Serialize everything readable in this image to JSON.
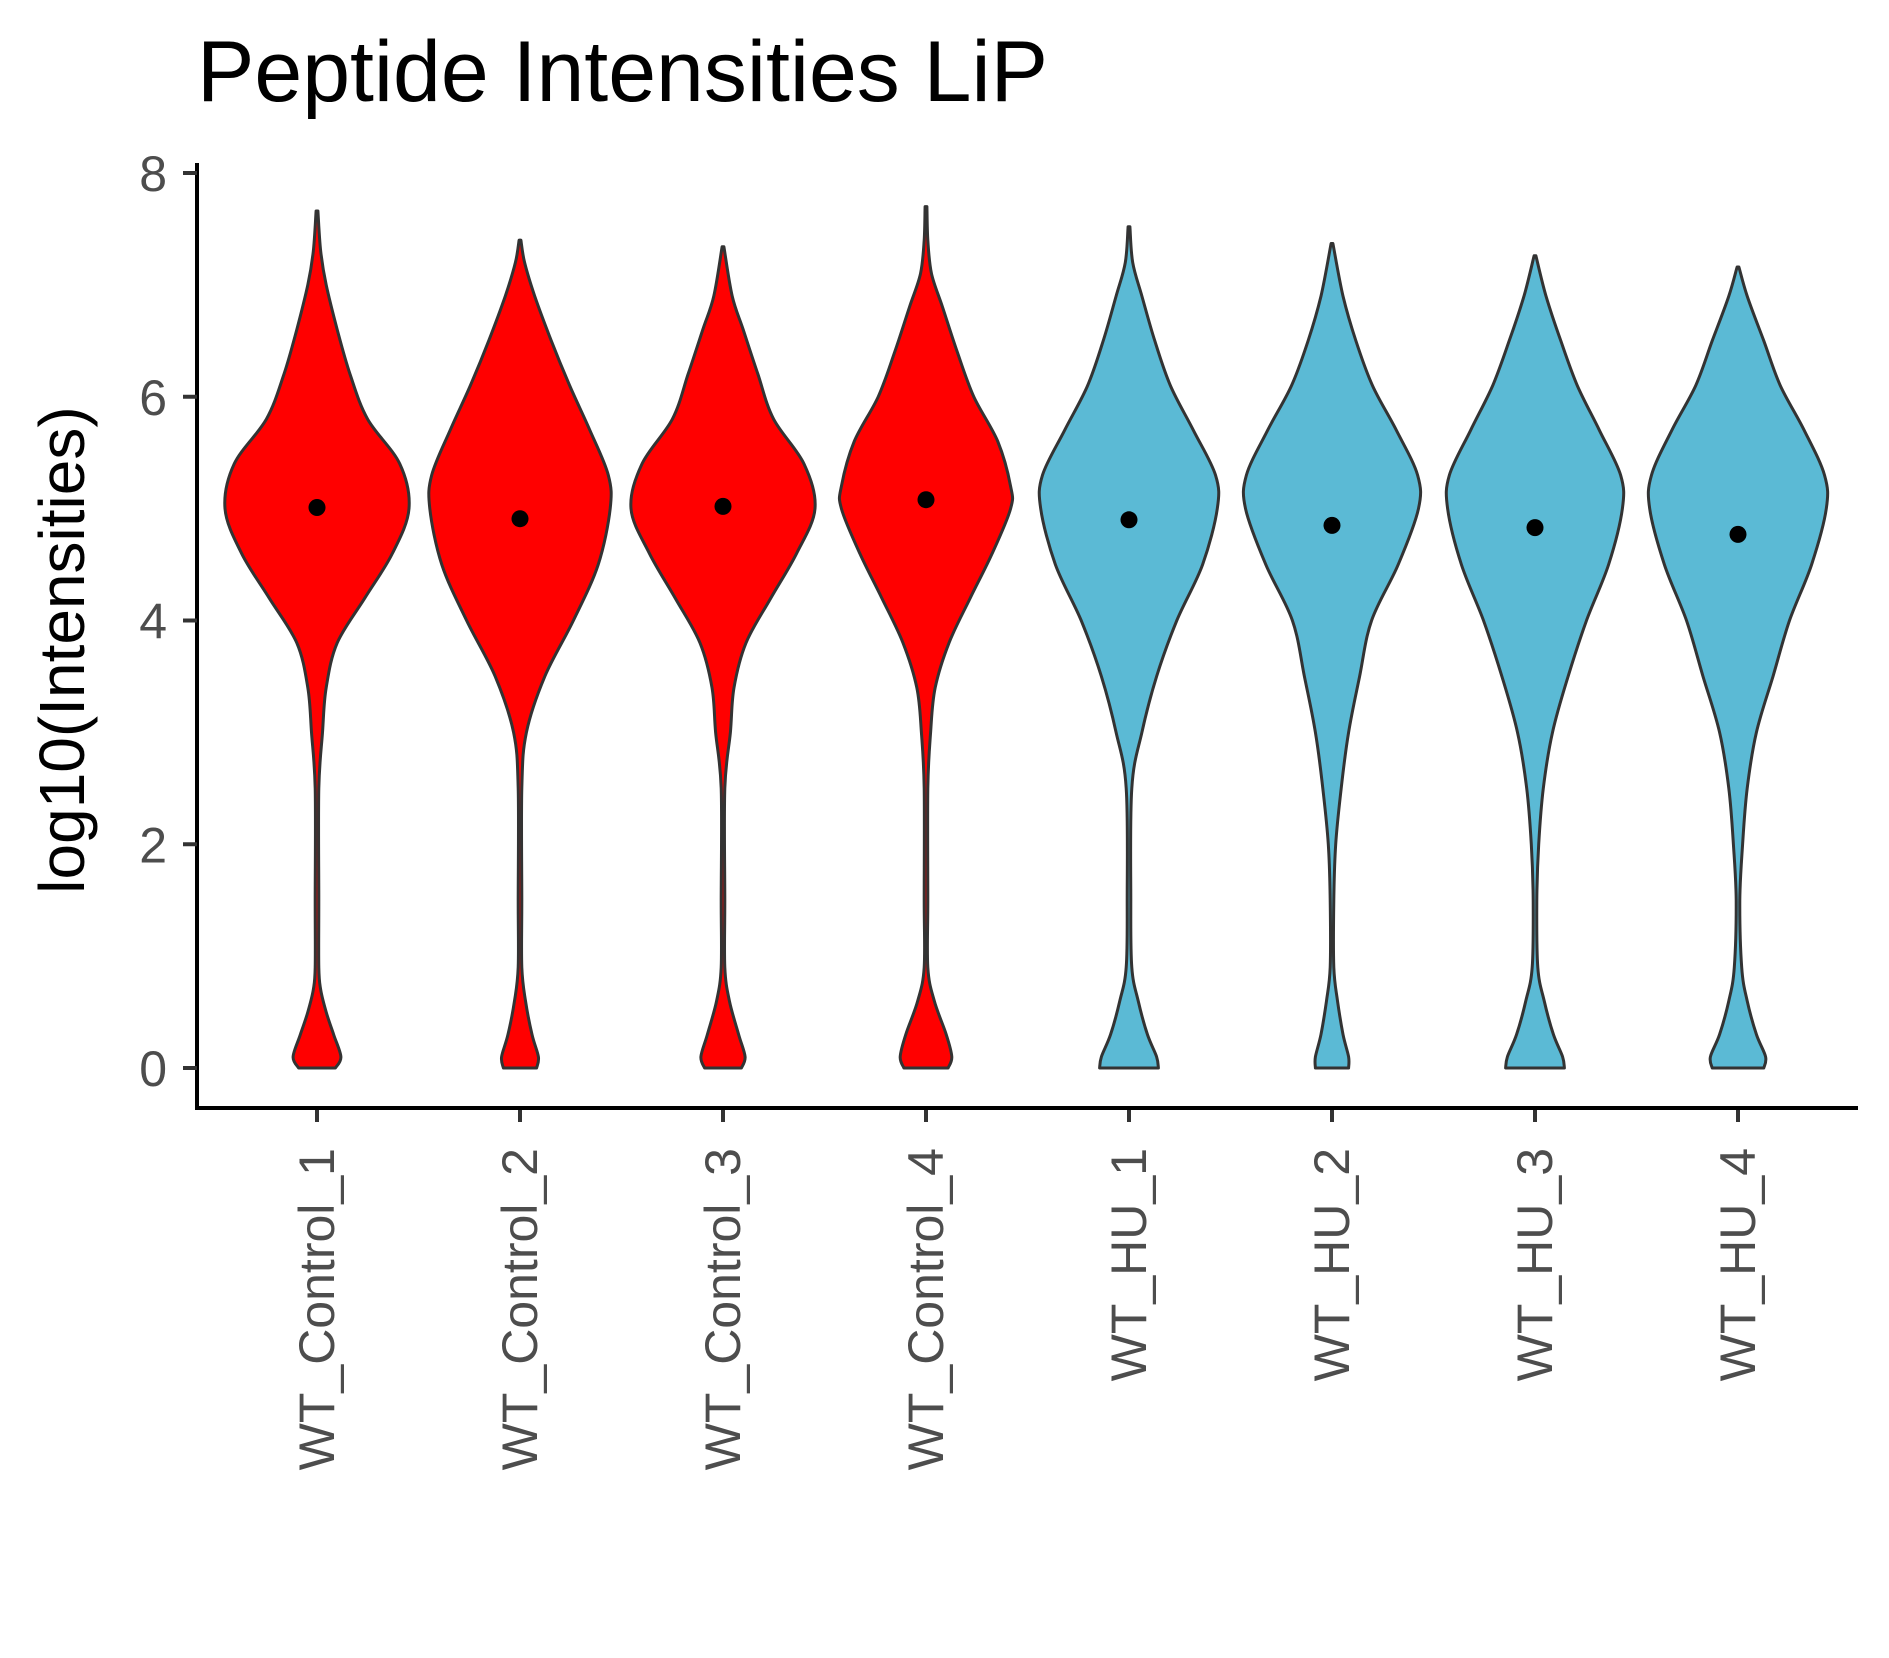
{
  "chart_data": {
    "type": "violin",
    "title": "Peptide Intensities LiP",
    "xlabel": "",
    "ylabel": "log10(Intensities)",
    "ylim": [
      -0.35,
      8.05
    ],
    "yticks": [
      0,
      2,
      4,
      6,
      8
    ],
    "grid": false,
    "legend": "none",
    "categories": [
      "WT_Control_1",
      "WT_Control_2",
      "WT_Control_3",
      "WT_Control_4",
      "WT_HU_1",
      "WT_HU_2",
      "WT_HU_3",
      "WT_HU_4"
    ],
    "groups": [
      "Control",
      "Control",
      "Control",
      "Control",
      "HU",
      "HU",
      "HU",
      "HU"
    ],
    "group_colors": {
      "Control": "#ff0000",
      "HU": "#5bbad5"
    },
    "outline_color": "#333333",
    "point_color": "#000000",
    "means": [
      5.01,
      4.91,
      5.02,
      5.08,
      4.9,
      4.85,
      4.83,
      4.77
    ],
    "max_values": [
      7.66,
      7.4,
      7.34,
      7.7,
      7.52,
      7.37,
      7.26,
      7.16
    ],
    "min_values": [
      0,
      0,
      0,
      0,
      0,
      0,
      0,
      0
    ],
    "violin_profiles": [
      [
        [
          0,
          0.2
        ],
        [
          0.1,
          0.26
        ],
        [
          0.3,
          0.18
        ],
        [
          0.5,
          0.1
        ],
        [
          0.7,
          0.04
        ],
        [
          0.9,
          0.02
        ],
        [
          1.5,
          0.02
        ],
        [
          2.5,
          0.02
        ],
        [
          3.0,
          0.06
        ],
        [
          3.4,
          0.1
        ],
        [
          3.8,
          0.22
        ],
        [
          4.2,
          0.52
        ],
        [
          4.6,
          0.82
        ],
        [
          5.0,
          1.0
        ],
        [
          5.4,
          0.9
        ],
        [
          5.8,
          0.55
        ],
        [
          6.2,
          0.36
        ],
        [
          6.6,
          0.22
        ],
        [
          7.0,
          0.1
        ],
        [
          7.3,
          0.04
        ],
        [
          7.66,
          0.01
        ]
      ],
      [
        [
          0,
          0.18
        ],
        [
          0.1,
          0.2
        ],
        [
          0.3,
          0.13
        ],
        [
          0.6,
          0.06
        ],
        [
          0.9,
          0.02
        ],
        [
          1.5,
          0.02
        ],
        [
          2.5,
          0.02
        ],
        [
          3.0,
          0.07
        ],
        [
          3.5,
          0.27
        ],
        [
          4.0,
          0.58
        ],
        [
          4.5,
          0.85
        ],
        [
          5.0,
          0.98
        ],
        [
          5.3,
          0.96
        ],
        [
          5.7,
          0.76
        ],
        [
          6.1,
          0.54
        ],
        [
          6.5,
          0.34
        ],
        [
          6.9,
          0.16
        ],
        [
          7.2,
          0.05
        ],
        [
          7.4,
          0.01
        ]
      ],
      [
        [
          0,
          0.2
        ],
        [
          0.1,
          0.24
        ],
        [
          0.3,
          0.17
        ],
        [
          0.6,
          0.07
        ],
        [
          0.9,
          0.02
        ],
        [
          1.5,
          0.02
        ],
        [
          2.5,
          0.02
        ],
        [
          3.0,
          0.08
        ],
        [
          3.4,
          0.12
        ],
        [
          3.8,
          0.25
        ],
        [
          4.2,
          0.52
        ],
        [
          4.6,
          0.8
        ],
        [
          5.0,
          1.0
        ],
        [
          5.4,
          0.88
        ],
        [
          5.8,
          0.55
        ],
        [
          6.2,
          0.38
        ],
        [
          6.6,
          0.22
        ],
        [
          6.9,
          0.1
        ],
        [
          7.34,
          0.01
        ]
      ],
      [
        [
          0,
          0.24
        ],
        [
          0.1,
          0.28
        ],
        [
          0.3,
          0.22
        ],
        [
          0.6,
          0.09
        ],
        [
          0.9,
          0.02
        ],
        [
          1.5,
          0.02
        ],
        [
          2.5,
          0.02
        ],
        [
          3.0,
          0.05
        ],
        [
          3.4,
          0.1
        ],
        [
          3.8,
          0.25
        ],
        [
          4.2,
          0.48
        ],
        [
          4.6,
          0.72
        ],
        [
          5.0,
          0.92
        ],
        [
          5.2,
          0.92
        ],
        [
          5.6,
          0.78
        ],
        [
          6.0,
          0.52
        ],
        [
          6.4,
          0.34
        ],
        [
          6.8,
          0.18
        ],
        [
          7.1,
          0.06
        ],
        [
          7.4,
          0.02
        ],
        [
          7.7,
          0.01
        ]
      ],
      [
        [
          0,
          0.32
        ],
        [
          0.1,
          0.3
        ],
        [
          0.3,
          0.2
        ],
        [
          0.6,
          0.1
        ],
        [
          0.9,
          0.03
        ],
        [
          1.5,
          0.02
        ],
        [
          2.5,
          0.03
        ],
        [
          3.0,
          0.14
        ],
        [
          3.5,
          0.3
        ],
        [
          4.0,
          0.52
        ],
        [
          4.5,
          0.8
        ],
        [
          5.0,
          0.96
        ],
        [
          5.3,
          0.94
        ],
        [
          5.7,
          0.7
        ],
        [
          6.1,
          0.45
        ],
        [
          6.5,
          0.28
        ],
        [
          6.9,
          0.14
        ],
        [
          7.2,
          0.04
        ],
        [
          7.52,
          0.01
        ]
      ],
      [
        [
          0,
          0.18
        ],
        [
          0.1,
          0.18
        ],
        [
          0.3,
          0.12
        ],
        [
          0.6,
          0.06
        ],
        [
          0.9,
          0.02
        ],
        [
          1.5,
          0.02
        ],
        [
          2.0,
          0.04
        ],
        [
          2.5,
          0.1
        ],
        [
          3.0,
          0.18
        ],
        [
          3.5,
          0.3
        ],
        [
          4.0,
          0.43
        ],
        [
          4.5,
          0.72
        ],
        [
          5.0,
          0.94
        ],
        [
          5.3,
          0.93
        ],
        [
          5.7,
          0.7
        ],
        [
          6.1,
          0.44
        ],
        [
          6.5,
          0.26
        ],
        [
          6.9,
          0.12
        ],
        [
          7.37,
          0.01
        ]
      ],
      [
        [
          0,
          0.32
        ],
        [
          0.1,
          0.3
        ],
        [
          0.3,
          0.2
        ],
        [
          0.6,
          0.1
        ],
        [
          0.9,
          0.03
        ],
        [
          1.5,
          0.02
        ],
        [
          2.0,
          0.04
        ],
        [
          2.5,
          0.09
        ],
        [
          3.0,
          0.19
        ],
        [
          3.5,
          0.36
        ],
        [
          4.0,
          0.56
        ],
        [
          4.5,
          0.8
        ],
        [
          5.0,
          0.95
        ],
        [
          5.3,
          0.93
        ],
        [
          5.7,
          0.7
        ],
        [
          6.1,
          0.46
        ],
        [
          6.5,
          0.28
        ],
        [
          6.9,
          0.12
        ],
        [
          7.26,
          0.01
        ]
      ],
      [
        [
          0,
          0.28
        ],
        [
          0.1,
          0.3
        ],
        [
          0.3,
          0.2
        ],
        [
          0.6,
          0.1
        ],
        [
          0.9,
          0.04
        ],
        [
          1.5,
          0.02
        ],
        [
          2.0,
          0.05
        ],
        [
          2.5,
          0.1
        ],
        [
          3.0,
          0.2
        ],
        [
          3.5,
          0.38
        ],
        [
          4.0,
          0.56
        ],
        [
          4.5,
          0.8
        ],
        [
          5.0,
          0.96
        ],
        [
          5.3,
          0.94
        ],
        [
          5.7,
          0.72
        ],
        [
          6.1,
          0.46
        ],
        [
          6.5,
          0.28
        ],
        [
          6.9,
          0.1
        ],
        [
          7.16,
          0.01
        ]
      ]
    ]
  }
}
